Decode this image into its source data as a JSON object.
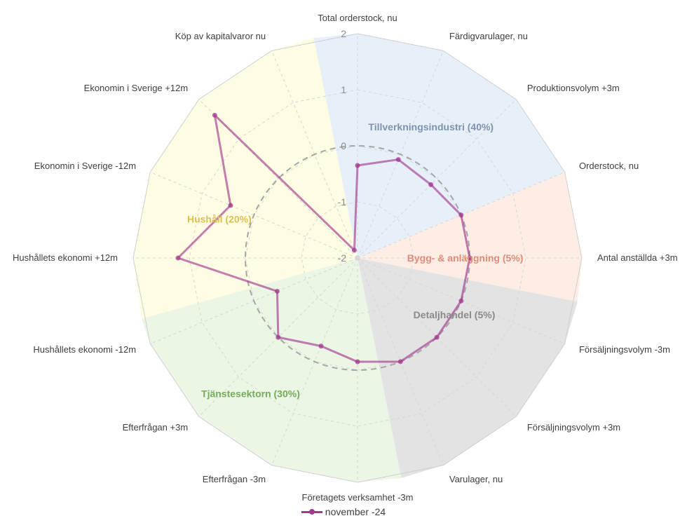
{
  "chart_data": {
    "type": "radar",
    "axis_labels": [
      "Total orderstock, nu",
      "Färdigvarulager, nu",
      "Produktionsvolym +3m",
      "Orderstock, nu",
      "Antal anställda +3m",
      "Försäljningsvolym -3m",
      "Försäljningsvolym +3m",
      "Varulager, nu",
      "Företagets verksamhet -3m",
      "Efterfrågan -3m",
      "Efterfrågan +3m",
      "Hushållets ekonomi -12m",
      "Hushållets ekonomi +12m",
      "Ekonomin i Sverige -12m",
      "Ekonomin i Sverige +12m",
      "Köp av kapitalvaror nu"
    ],
    "tick_labels": [
      "2",
      "1",
      "0",
      "-1",
      "-2"
    ],
    "rlim": [
      -2,
      2
    ],
    "reference_circle": 0,
    "sectors": [
      {
        "label": "Tillverkningsindustri (40%)",
        "color": "#dfeaf7",
        "label_color": "#7d93ad"
      },
      {
        "label": "Bygg- & anläggning (5%)",
        "color": "#fde7dc",
        "label_color": "#e08c78"
      },
      {
        "label": "Detaljhandel (5%)",
        "color": "#d9d9d9",
        "label_color": "#8a8a8a"
      },
      {
        "label": "Tjänstesektorn (30%)",
        "color": "#e4f3dc",
        "label_color": "#76ab5b"
      },
      {
        "label": "Hushåll (20%)",
        "color": "#fdfcd9",
        "label_color": "#dcc04f"
      }
    ],
    "series": [
      {
        "name": "november -24",
        "color": "#a13a8f",
        "values": [
          -0.35,
          -0.1,
          -0.15,
          0.0,
          0.0,
          0.0,
          0.0,
          0.0,
          -0.15,
          -0.3,
          0.0,
          -0.45,
          1.2,
          0.45,
          1.6,
          -1.85
        ]
      }
    ],
    "legend_position": "bottom"
  }
}
